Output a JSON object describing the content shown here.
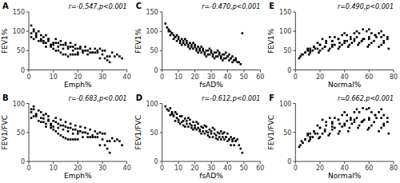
{
  "chart_data": [
    {
      "type": "scatter",
      "title": "A",
      "xlabel": "Emph%",
      "ylabel": "FEV1%",
      "annotation": "r=-0.547,p<0.001",
      "color": "#000000",
      "marker": "square",
      "xlim": [
        0,
        40
      ],
      "ylim": [
        0,
        150
      ],
      "xticks": [
        0,
        10,
        20,
        30,
        40
      ],
      "yticks": [
        0,
        50,
        100,
        150
      ],
      "x": [
        1,
        2,
        1,
        2,
        3,
        1,
        4,
        3,
        2,
        5,
        6,
        5,
        4,
        6,
        7,
        3,
        8,
        5,
        7,
        9,
        8,
        6,
        10,
        9,
        7,
        11,
        8,
        12,
        10,
        9,
        13,
        11,
        14,
        12,
        10,
        15,
        13,
        16,
        14,
        11,
        17,
        15,
        18,
        16,
        12,
        19,
        17,
        20,
        18,
        13,
        21,
        19,
        22,
        20,
        14,
        23,
        21,
        24,
        22,
        15,
        25,
        23,
        26,
        24,
        16,
        27,
        28,
        25,
        17,
        29,
        30,
        26,
        18,
        31,
        27,
        19,
        32,
        28,
        20,
        33,
        29,
        34,
        30,
        35,
        31,
        36,
        37,
        38,
        32,
        33
      ],
      "values": [
        115,
        105,
        95,
        100,
        90,
        85,
        100,
        95,
        80,
        90,
        85,
        80,
        75,
        70,
        90,
        85,
        80,
        75,
        70,
        65,
        80,
        75,
        70,
        65,
        60,
        80,
        75,
        70,
        65,
        60,
        75,
        70,
        65,
        60,
        55,
        70,
        65,
        60,
        55,
        50,
        70,
        65,
        60,
        55,
        50,
        65,
        60,
        55,
        50,
        45,
        60,
        55,
        50,
        45,
        40,
        60,
        55,
        50,
        45,
        40,
        55,
        50,
        45,
        40,
        35,
        55,
        50,
        45,
        40,
        55,
        50,
        45,
        40,
        50,
        45,
        40,
        35,
        45,
        40,
        35,
        30,
        45,
        40,
        35,
        30,
        40,
        35,
        30,
        25,
        20
      ]
    },
    {
      "type": "scatter",
      "title": "C",
      "xlabel": "fsAD%",
      "ylabel": "FEV1%",
      "annotation": "r=-0.470,p<0.001",
      "color": "#000000",
      "marker": "square",
      "xlim": [
        0,
        60
      ],
      "ylim": [
        0,
        150
      ],
      "xticks": [
        0,
        10,
        20,
        30,
        40,
        50,
        60
      ],
      "yticks": [
        0,
        50,
        100,
        150
      ],
      "x": [
        2,
        3,
        4,
        5,
        6,
        5,
        4,
        6,
        7,
        8,
        7,
        9,
        8,
        10,
        9,
        11,
        10,
        12,
        11,
        13,
        12,
        14,
        13,
        15,
        14,
        16,
        15,
        17,
        16,
        18,
        17,
        19,
        18,
        20,
        19,
        21,
        20,
        22,
        21,
        23,
        22,
        24,
        23,
        25,
        24,
        26,
        25,
        27,
        26,
        28,
        27,
        29,
        28,
        30,
        29,
        31,
        30,
        32,
        31,
        33,
        32,
        34,
        33,
        35,
        34,
        36,
        35,
        37,
        36,
        38,
        37,
        39,
        38,
        40,
        39,
        41,
        40,
        42,
        41,
        43,
        42,
        44,
        43,
        45,
        44,
        46,
        45,
        47,
        48,
        49
      ],
      "values": [
        120,
        110,
        105,
        100,
        95,
        90,
        100,
        95,
        90,
        85,
        80,
        90,
        85,
        80,
        75,
        70,
        85,
        80,
        75,
        70,
        65,
        80,
        75,
        70,
        65,
        60,
        75,
        70,
        65,
        60,
        55,
        70,
        65,
        60,
        55,
        50,
        65,
        60,
        55,
        50,
        45,
        60,
        55,
        50,
        45,
        40,
        55,
        50,
        45,
        40,
        35,
        55,
        50,
        45,
        40,
        35,
        50,
        45,
        40,
        35,
        30,
        50,
        45,
        40,
        35,
        30,
        45,
        40,
        35,
        30,
        25,
        45,
        40,
        35,
        30,
        40,
        35,
        30,
        25,
        35,
        30,
        25,
        20,
        30,
        25,
        20,
        25,
        20,
        15,
        95
      ]
    },
    {
      "type": "scatter",
      "title": "E",
      "xlabel": "Normal%",
      "ylabel": "FEV1%",
      "annotation": "r=0.490,p<0.001",
      "color": "#000000",
      "marker": "square",
      "xlim": [
        0,
        80
      ],
      "ylim": [
        0,
        150
      ],
      "xticks": [
        0,
        20,
        40,
        60,
        80
      ],
      "yticks": [
        0,
        50,
        100,
        150
      ],
      "x": [
        5,
        10,
        8,
        12,
        15,
        20,
        18,
        25,
        22,
        28,
        30,
        35,
        32,
        38,
        40,
        42,
        45,
        48,
        50,
        55,
        52,
        58,
        60,
        62,
        65,
        68,
        70,
        72,
        75,
        10,
        15,
        20,
        25,
        30,
        35,
        40,
        45,
        50,
        55,
        60,
        65,
        70,
        75,
        12,
        18,
        24,
        30,
        36,
        42,
        48,
        54,
        60,
        66,
        72,
        8,
        16,
        24,
        32,
        40,
        48,
        56,
        64,
        72,
        6,
        14,
        22,
        30,
        38,
        46,
        54,
        62,
        70,
        4,
        12,
        20,
        28,
        36,
        44,
        52,
        60,
        68,
        76,
        3,
        11,
        19,
        27,
        35,
        43,
        51,
        59
      ],
      "values": [
        40,
        50,
        45,
        55,
        60,
        65,
        70,
        75,
        80,
        85,
        75,
        80,
        85,
        90,
        95,
        90,
        85,
        95,
        100,
        105,
        95,
        100,
        105,
        95,
        90,
        95,
        100,
        90,
        85,
        55,
        60,
        65,
        70,
        75,
        80,
        75,
        80,
        85,
        80,
        85,
        90,
        85,
        80,
        50,
        55,
        60,
        65,
        70,
        75,
        80,
        75,
        80,
        85,
        75,
        45,
        55,
        60,
        65,
        70,
        75,
        80,
        75,
        70,
        40,
        50,
        55,
        60,
        65,
        70,
        75,
        70,
        65,
        35,
        45,
        50,
        55,
        60,
        65,
        70,
        65,
        60,
        55,
        30,
        40,
        45,
        50,
        55,
        60,
        65,
        60
      ]
    },
    {
      "type": "scatter",
      "title": "B",
      "xlabel": "Emph%",
      "ylabel": "FEV1/FVC",
      "annotation": "r=-0.683,p<0.001",
      "color": "#000000",
      "marker": "square",
      "xlim": [
        0,
        40
      ],
      "ylim": [
        0,
        100
      ],
      "xticks": [
        0,
        10,
        20,
        30,
        40
      ],
      "yticks": [
        0,
        50,
        100
      ],
      "x": [
        1,
        2,
        1,
        2,
        3,
        1,
        4,
        3,
        2,
        5,
        6,
        5,
        4,
        6,
        7,
        3,
        8,
        5,
        7,
        9,
        8,
        6,
        10,
        9,
        7,
        11,
        8,
        12,
        10,
        9,
        13,
        11,
        14,
        12,
        10,
        15,
        13,
        16,
        14,
        11,
        17,
        15,
        18,
        16,
        12,
        19,
        17,
        20,
        18,
        13,
        21,
        19,
        22,
        20,
        14,
        23,
        21,
        24,
        22,
        15,
        25,
        23,
        26,
        24,
        16,
        27,
        28,
        25,
        17,
        29,
        30,
        26,
        18,
        31,
        27,
        19,
        32,
        28,
        20,
        33,
        29,
        34,
        30,
        35,
        31,
        36,
        37,
        38,
        32,
        33
      ],
      "values": [
        90,
        95,
        85,
        90,
        80,
        75,
        88,
        82,
        78,
        85,
        80,
        75,
        70,
        68,
        82,
        78,
        72,
        68,
        65,
        62,
        78,
        74,
        70,
        65,
        60,
        75,
        70,
        65,
        60,
        58,
        72,
        68,
        62,
        58,
        55,
        68,
        62,
        58,
        55,
        52,
        65,
        60,
        55,
        52,
        48,
        62,
        58,
        52,
        48,
        45,
        60,
        55,
        50,
        48,
        42,
        58,
        52,
        48,
        42,
        40,
        55,
        50,
        45,
        42,
        38,
        52,
        48,
        42,
        38,
        50,
        48,
        42,
        38,
        48,
        42,
        38,
        35,
        42,
        38,
        35,
        28,
        40,
        38,
        35,
        28,
        38,
        35,
        28,
        22,
        15
      ]
    },
    {
      "type": "scatter",
      "title": "D",
      "xlabel": "fsAD%",
      "ylabel": "FEV1/FVC",
      "annotation": "r=-0.612,p<0.001",
      "color": "#000000",
      "marker": "square",
      "xlim": [
        0,
        60
      ],
      "ylim": [
        0,
        100
      ],
      "xticks": [
        0,
        10,
        20,
        30,
        40,
        50,
        60
      ],
      "yticks": [
        0,
        50,
        100
      ],
      "x": [
        2,
        3,
        4,
        5,
        6,
        5,
        4,
        6,
        7,
        8,
        7,
        9,
        8,
        10,
        9,
        11,
        10,
        12,
        11,
        13,
        12,
        14,
        13,
        15,
        14,
        16,
        15,
        17,
        16,
        18,
        17,
        19,
        18,
        20,
        19,
        21,
        20,
        22,
        21,
        23,
        22,
        24,
        23,
        25,
        24,
        26,
        25,
        27,
        26,
        28,
        27,
        29,
        28,
        30,
        29,
        31,
        30,
        32,
        31,
        33,
        32,
        34,
        33,
        35,
        34,
        36,
        35,
        37,
        36,
        38,
        37,
        39,
        38,
        40,
        39,
        41,
        40,
        42,
        41,
        43,
        42,
        44,
        43,
        45,
        44,
        46,
        45,
        47,
        48,
        49
      ],
      "values": [
        95,
        90,
        88,
        92,
        85,
        80,
        88,
        82,
        78,
        85,
        80,
        75,
        70,
        68,
        82,
        78,
        72,
        68,
        65,
        62,
        78,
        74,
        70,
        65,
        60,
        75,
        70,
        65,
        60,
        58,
        72,
        68,
        62,
        58,
        55,
        68,
        62,
        58,
        55,
        52,
        65,
        60,
        55,
        52,
        48,
        62,
        58,
        52,
        48,
        45,
        60,
        55,
        50,
        48,
        42,
        58,
        52,
        48,
        42,
        40,
        55,
        50,
        45,
        42,
        38,
        52,
        48,
        42,
        38,
        50,
        48,
        42,
        38,
        48,
        42,
        38,
        35,
        42,
        38,
        35,
        28,
        40,
        38,
        35,
        28,
        38,
        35,
        28,
        22,
        15
      ]
    },
    {
      "type": "scatter",
      "title": "F",
      "xlabel": "Normal%",
      "ylabel": "FEV1/FVC",
      "annotation": "r=0.662,p<0.001",
      "color": "#000000",
      "marker": "square",
      "xlim": [
        0,
        80
      ],
      "ylim": [
        0,
        100
      ],
      "xticks": [
        0,
        20,
        40,
        60,
        80
      ],
      "yticks": [
        0,
        50,
        100
      ],
      "x": [
        5,
        10,
        8,
        12,
        15,
        20,
        18,
        25,
        22,
        28,
        30,
        35,
        32,
        38,
        40,
        42,
        45,
        48,
        50,
        55,
        52,
        58,
        60,
        62,
        65,
        68,
        70,
        72,
        75,
        10,
        15,
        20,
        25,
        30,
        35,
        40,
        45,
        50,
        55,
        60,
        65,
        70,
        75,
        12,
        18,
        24,
        30,
        36,
        42,
        48,
        54,
        60,
        66,
        72,
        8,
        16,
        24,
        32,
        40,
        48,
        56,
        64,
        72,
        6,
        14,
        22,
        30,
        38,
        46,
        54,
        62,
        70,
        4,
        12,
        20,
        28,
        36,
        44,
        52,
        60,
        68,
        76,
        3,
        11,
        19,
        27,
        35,
        43,
        51,
        59
      ],
      "values": [
        35,
        45,
        38,
        48,
        52,
        58,
        62,
        68,
        72,
        75,
        65,
        72,
        75,
        80,
        85,
        80,
        75,
        85,
        90,
        92,
        85,
        90,
        92,
        85,
        80,
        85,
        90,
        80,
        75,
        48,
        52,
        58,
        62,
        68,
        72,
        65,
        72,
        75,
        70,
        75,
        80,
        75,
        68,
        42,
        48,
        55,
        60,
        65,
        70,
        72,
        68,
        72,
        75,
        65,
        38,
        48,
        52,
        58,
        62,
        68,
        72,
        68,
        62,
        32,
        42,
        48,
        55,
        60,
        65,
        68,
        62,
        58,
        28,
        38,
        42,
        48,
        52,
        58,
        62,
        58,
        52,
        48,
        25,
        35,
        40,
        45,
        48,
        52,
        58,
        55
      ]
    }
  ]
}
